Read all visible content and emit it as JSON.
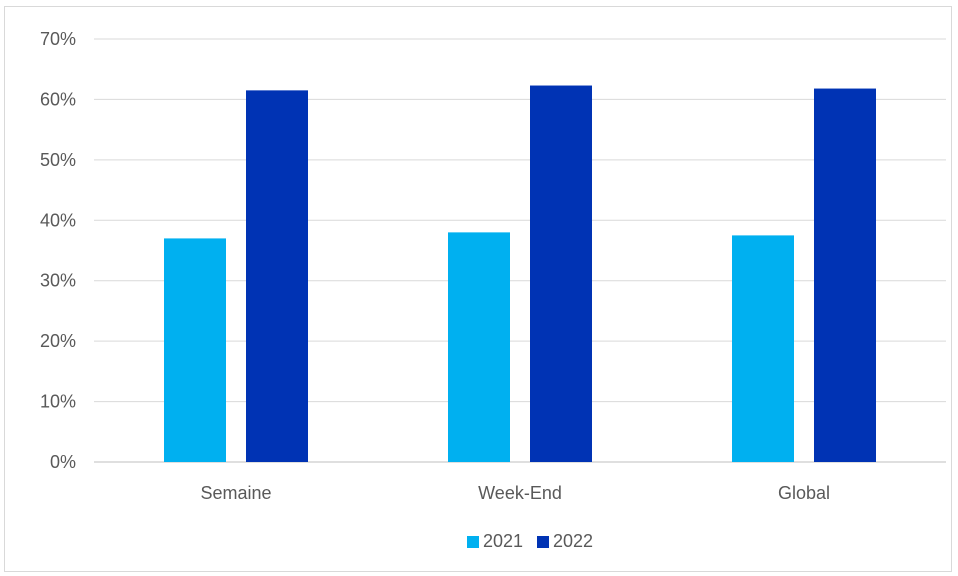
{
  "chart_data": {
    "type": "bar",
    "categories": [
      "Semaine",
      "Week-End",
      "Global"
    ],
    "series": [
      {
        "name": "2021",
        "values": [
          37.0,
          38.0,
          37.5
        ],
        "color": "#00b0f0"
      },
      {
        "name": "2022",
        "values": [
          61.5,
          62.3,
          61.8
        ],
        "color": "#0033b4"
      }
    ],
    "y_ticks": [
      "0%",
      "10%",
      "20%",
      "30%",
      "40%",
      "50%",
      "60%",
      "70%"
    ],
    "ylim": [
      0,
      70
    ],
    "y_unit": "%",
    "grid": true,
    "legend_position": "bottom"
  }
}
